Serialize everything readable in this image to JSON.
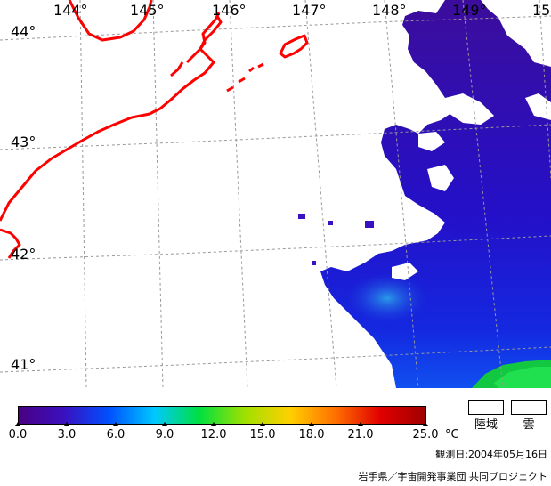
{
  "map": {
    "longitude_labels": [
      "144°",
      "145°",
      "146°",
      "147°",
      "148°",
      "149°",
      "15"
    ],
    "latitude_labels": [
      "44°",
      "43°",
      "42°",
      "41°"
    ],
    "coastline_color": "#ff0000",
    "grid_color": "#999999"
  },
  "legend": {
    "ticks": [
      "0.0",
      "3.0",
      "6.0",
      "9.0",
      "12.0",
      "15.0",
      "18.0",
      "21.0",
      "25.0"
    ],
    "unit": "°C",
    "gradient_colors": [
      "#4b0082",
      "#3a10c0",
      "#0050ff",
      "#00c8ff",
      "#00e040",
      "#a0e000",
      "#ffd000",
      "#ff7000",
      "#e00000",
      "#a00000"
    ],
    "land_label": "陸域",
    "cloud_label": "雲"
  },
  "observation_date": "観測日:2004年05月16日",
  "credit": "岩手県／宇宙開発事業団 共同プロジェクト"
}
